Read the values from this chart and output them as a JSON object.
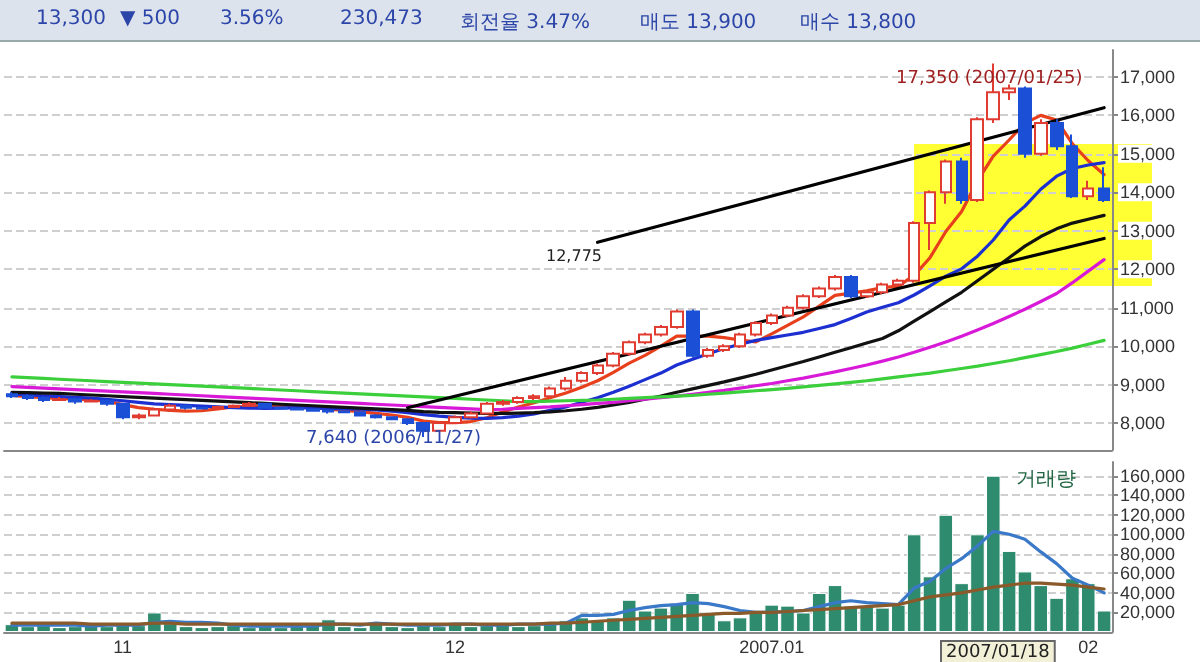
{
  "chart_data": [
    {
      "type": "candlestick",
      "categories": [
        null,
        null,
        null,
        null,
        null,
        null,
        null,
        null,
        null,
        null,
        null,
        null,
        null,
        null,
        null,
        null,
        null,
        null,
        null,
        null,
        null,
        null,
        null,
        null,
        null,
        null,
        null,
        null,
        null,
        null,
        null,
        null,
        null,
        null,
        null,
        null,
        null,
        null,
        null,
        null,
        null,
        null,
        null,
        null,
        null,
        null,
        null,
        null,
        null,
        null,
        null,
        null,
        null,
        null,
        null,
        null,
        null,
        null,
        null,
        null,
        null,
        null,
        null,
        null,
        null,
        null,
        null,
        null,
        null,
        null
      ],
      "ylim": [
        7300,
        17700
      ],
      "yticks": [
        {
          "value": 8000,
          "label": "8,000"
        },
        {
          "value": 9000,
          "label": "9,000"
        },
        {
          "value": 10000,
          "label": "10,000"
        },
        {
          "value": 11000,
          "label": "11,000"
        },
        {
          "value": 12000,
          "label": "12,000"
        },
        {
          "value": 13000,
          "label": "13,000"
        },
        {
          "value": 14000,
          "label": "14,000"
        },
        {
          "value": 15000,
          "label": "15,000"
        },
        {
          "value": 16000,
          "label": "16,000"
        },
        {
          "value": 17000,
          "label": "17,000"
        }
      ],
      "grid": "y",
      "tick_labels": "y",
      "annotations": [
        "13,300",
        "▼ 500",
        "3.56%",
        "230,473",
        "회전율 3.47%",
        "매도 13,900",
        "매수 13,800",
        "17,350 (2007/01/25)",
        "7,640 (2006/11/27)",
        "12,775"
      ],
      "series": [
        {
          "type": "candlestick",
          "ohlc": [
            [
              8750,
              8800,
              8650,
              8700
            ],
            [
              8700,
              8750,
              8600,
              8650
            ],
            [
              8650,
              8700,
              8550,
              8600
            ],
            [
              8600,
              8680,
              8580,
              8620
            ],
            [
              8620,
              8650,
              8500,
              8560
            ],
            [
              8560,
              8620,
              8540,
              8580
            ],
            [
              8580,
              8600,
              8450,
              8500
            ],
            [
              8500,
              8520,
              8100,
              8150
            ],
            [
              8150,
              8250,
              8100,
              8200
            ],
            [
              8200,
              8400,
              8180,
              8350
            ],
            [
              8350,
              8500,
              8300,
              8450
            ],
            [
              8450,
              8480,
              8350,
              8400
            ],
            [
              8400,
              8420,
              8350,
              8380
            ],
            [
              8380,
              8450,
              8360,
              8420
            ],
            [
              8420,
              8480,
              8400,
              8450
            ],
            [
              8450,
              8550,
              8430,
              8500
            ],
            [
              8500,
              8520,
              8380,
              8400
            ],
            [
              8400,
              8420,
              8350,
              8380
            ],
            [
              8380,
              8400,
              8330,
              8350
            ],
            [
              8350,
              8380,
              8300,
              8320
            ],
            [
              8320,
              8350,
              8250,
              8300
            ],
            [
              8300,
              8330,
              8260,
              8280
            ],
            [
              8280,
              8300,
              8180,
              8200
            ],
            [
              8200,
              8230,
              8120,
              8150
            ],
            [
              8150,
              8180,
              8080,
              8100
            ],
            [
              8100,
              8120,
              7950,
              8000
            ],
            [
              8000,
              8020,
              7640,
              7800
            ],
            [
              7800,
              8050,
              7780,
              8000
            ],
            [
              8000,
              8200,
              7980,
              8150
            ],
            [
              8150,
              8300,
              8120,
              8250
            ],
            [
              8250,
              8550,
              8230,
              8500
            ],
            [
              8500,
              8600,
              8450,
              8550
            ],
            [
              8550,
              8700,
              8500,
              8650
            ],
            [
              8650,
              8750,
              8600,
              8700
            ],
            [
              8700,
              8950,
              8680,
              8900
            ],
            [
              8900,
              9200,
              8850,
              9100
            ],
            [
              9100,
              9350,
              9050,
              9300
            ],
            [
              9300,
              9550,
              9250,
              9500
            ],
            [
              9500,
              9850,
              9450,
              9800
            ],
            [
              9800,
              10150,
              9750,
              10100
            ],
            [
              10100,
              10350,
              10050,
              10300
            ],
            [
              10300,
              10550,
              10250,
              10500
            ],
            [
              10500,
              10950,
              10450,
              10900
            ],
            [
              10900,
              10950,
              9700,
              9750
            ],
            [
              9750,
              9950,
              9700,
              9900
            ],
            [
              9900,
              10050,
              9850,
              10000
            ],
            [
              10000,
              10350,
              9950,
              10300
            ],
            [
              10300,
              10650,
              10250,
              10600
            ],
            [
              10600,
              10850,
              10550,
              10800
            ],
            [
              10800,
              11050,
              10750,
              11000
            ],
            [
              11000,
              11350,
              10950,
              11300
            ],
            [
              11300,
              11550,
              11250,
              11500
            ],
            [
              11500,
              11850,
              11450,
              11800
            ],
            [
              11800,
              11850,
              11250,
              11300
            ],
            [
              11300,
              11450,
              11250,
              11400
            ],
            [
              11400,
              11650,
              11350,
              11600
            ],
            [
              11600,
              11750,
              11550,
              11700
            ],
            [
              11700,
              13250,
              11650,
              13200
            ],
            [
              13200,
              14050,
              12500,
              14000
            ],
            [
              14000,
              14850,
              13700,
              14800
            ],
            [
              14800,
              14900,
              13700,
              13800
            ],
            [
              13800,
              15950,
              13750,
              15900
            ],
            [
              15900,
              17350,
              15800,
              16600
            ],
            [
              16600,
              16800,
              16400,
              16700
            ],
            [
              16700,
              16750,
              14900,
              15000
            ],
            [
              15000,
              15900,
              14950,
              15800
            ],
            [
              15800,
              15900,
              15100,
              15200
            ],
            [
              15200,
              15500,
              13850,
              13900
            ],
            [
              13900,
              14300,
              13800,
              14100
            ],
            [
              14100,
              14650,
              13750,
              13800
            ]
          ],
          "colors": [
            "#1a4fd6",
            "#1a4fd6",
            "#1a4fd6",
            "#e03c31",
            "#1a4fd6",
            "#e03c31",
            "#1a4fd6",
            "#1a4fd6",
            "#e03c31",
            "#e03c31",
            "#e03c31",
            "#1a4fd6",
            "#1a4fd6",
            "#e03c31",
            "#e03c31",
            "#e03c31",
            "#1a4fd6",
            "#1a4fd6",
            "#1a4fd6",
            "#1a4fd6",
            "#1a4fd6",
            "#1a4fd6",
            "#1a4fd6",
            "#1a4fd6",
            "#1a4fd6",
            "#1a4fd6",
            "#1a4fd6",
            "#e03c31",
            "#e03c31",
            "#e03c31",
            "#e03c31",
            "#e03c31",
            "#e03c31",
            "#e03c31",
            "#e03c31",
            "#e03c31",
            "#e03c31",
            "#e03c31",
            "#e03c31",
            "#e03c31",
            "#e03c31",
            "#e03c31",
            "#e03c31",
            "#1a4fd6",
            "#e03c31",
            "#e03c31",
            "#e03c31",
            "#e03c31",
            "#e03c31",
            "#e03c31",
            "#e03c31",
            "#e03c31",
            "#e03c31",
            "#1a4fd6",
            "#e03c31",
            "#e03c31",
            "#e03c31",
            "#e03c31",
            "#e03c31",
            "#e03c31",
            "#1a4fd6",
            "#e03c31",
            "#e03c31",
            "#e03c31",
            "#1a4fd6",
            "#e03c31",
            "#1a4fd6",
            "#1a4fd6",
            "#e03c31",
            "#1a4fd6"
          ]
        },
        {
          "type": "line",
          "color": "#e8401c",
          "values": [
            8720,
            8690,
            8660,
            8640,
            8620,
            8600,
            8570,
            8480,
            8400,
            8360,
            8330,
            8310,
            8320,
            8370,
            8420,
            8430,
            8430,
            8430,
            8420,
            8400,
            8360,
            8330,
            8300,
            8250,
            8210,
            8150,
            8050,
            8010,
            8010,
            8040,
            8140,
            8290,
            8420,
            8530,
            8660,
            8780,
            8930,
            9100,
            9320,
            9560,
            9760,
            10000,
            10260,
            10260,
            10260,
            10220,
            10160,
            10110,
            10320,
            10540,
            10760,
            11040,
            11320,
            11380,
            11440,
            11520,
            11560,
            11840,
            12300,
            12980,
            13500,
            14300,
            14940,
            15360,
            15800,
            16000,
            15880,
            15260,
            14820,
            14460
          ]
        },
        {
          "type": "line",
          "color": "#1c2fd0",
          "values": [
            8750,
            8730,
            8710,
            8690,
            8670,
            8650,
            8620,
            8580,
            8540,
            8500,
            8480,
            8460,
            8440,
            8420,
            8400,
            8390,
            8380,
            8390,
            8400,
            8390,
            8380,
            8370,
            8360,
            8340,
            8310,
            8270,
            8220,
            8180,
            8150,
            8130,
            8120,
            8140,
            8180,
            8240,
            8330,
            8420,
            8540,
            8660,
            8800,
            8960,
            9130,
            9300,
            9510,
            9660,
            9800,
            9940,
            10050,
            10150,
            10220,
            10290,
            10360,
            10460,
            10560,
            10720,
            10890,
            11010,
            11130,
            11330,
            11570,
            11820,
            12010,
            12340,
            12760,
            13280,
            13640,
            14080,
            14420,
            14620,
            14710,
            14770
          ]
        },
        {
          "type": "line",
          "color": "#111111",
          "values": [
            8800,
            8790,
            8780,
            8770,
            8750,
            8730,
            8710,
            8690,
            8670,
            8650,
            8630,
            8610,
            8590,
            8570,
            8550,
            8530,
            8510,
            8490,
            8470,
            8450,
            8430,
            8410,
            8390,
            8370,
            8350,
            8330,
            8300,
            8280,
            8270,
            8260,
            8250,
            8250,
            8260,
            8270,
            8290,
            8320,
            8360,
            8410,
            8470,
            8540,
            8620,
            8700,
            8800,
            8890,
            8980,
            9070,
            9170,
            9270,
            9380,
            9490,
            9600,
            9720,
            9840,
            9960,
            10080,
            10200,
            10400,
            10650,
            10900,
            11150,
            11400,
            11700,
            12000,
            12300,
            12600,
            12850,
            13050,
            13200,
            13300,
            13400
          ]
        },
        {
          "type": "line",
          "color": "#d81ad8",
          "values": [
            8950,
            8930,
            8910,
            8890,
            8870,
            8850,
            8830,
            8810,
            8790,
            8770,
            8750,
            8730,
            8710,
            8690,
            8670,
            8650,
            8630,
            8610,
            8590,
            8570,
            8550,
            8530,
            8510,
            8490,
            8470,
            8450,
            8430,
            8410,
            8390,
            8370,
            8350,
            8360,
            8380,
            8400,
            8420,
            8450,
            8480,
            8510,
            8540,
            8580,
            8620,
            8660,
            8700,
            8750,
            8800,
            8850,
            8910,
            8970,
            9030,
            9100,
            9170,
            9250,
            9330,
            9420,
            9510,
            9610,
            9720,
            9840,
            9970,
            10110,
            10260,
            10420,
            10590,
            10770,
            10960,
            11160,
            11370,
            11650,
            11950,
            12250
          ]
        },
        {
          "type": "line",
          "color": "#3ccf3c",
          "values": [
            9200,
            9180,
            9160,
            9140,
            9120,
            9100,
            9080,
            9060,
            9040,
            9020,
            9000,
            8980,
            8960,
            8940,
            8920,
            8900,
            8880,
            8860,
            8840,
            8820,
            8800,
            8780,
            8760,
            8740,
            8720,
            8700,
            8680,
            8660,
            8640,
            8620,
            8600,
            8580,
            8560,
            8560,
            8570,
            8580,
            8590,
            8600,
            8620,
            8640,
            8660,
            8680,
            8700,
            8720,
            8750,
            8780,
            8810,
            8840,
            8870,
            8900,
            8940,
            8980,
            9020,
            9060,
            9100,
            9150,
            9200,
            9250,
            9300,
            9360,
            9420,
            9480,
            9550,
            9620,
            9700,
            9780,
            9860,
            9950,
            10050,
            10150
          ]
        },
        {
          "type": "line",
          "color": "#000000",
          "values": [
            null,
            null,
            null,
            null,
            null,
            null,
            null,
            null,
            null,
            null,
            null,
            null,
            null,
            null,
            null,
            null,
            null,
            null,
            null,
            null,
            null,
            null,
            null,
            null,
            null,
            null,
            null,
            null,
            null,
            null,
            null,
            null,
            null,
            null,
            null,
            null,
            null,
            12700,
            null,
            null,
            null,
            null,
            null,
            null,
            null,
            null,
            null,
            null,
            null,
            null,
            null,
            null,
            null,
            null,
            null,
            null,
            null,
            null,
            null,
            null,
            null,
            null,
            null,
            null,
            null,
            null,
            null,
            null,
            null,
            16200
          ]
        },
        {
          "type": "line",
          "color": "#000000",
          "values": [
            null,
            null,
            null,
            null,
            null,
            null,
            null,
            null,
            null,
            null,
            null,
            null,
            null,
            null,
            null,
            null,
            null,
            null,
            null,
            null,
            null,
            null,
            null,
            null,
            null,
            8400,
            null,
            null,
            null,
            null,
            null,
            null,
            null,
            null,
            null,
            null,
            null,
            null,
            null,
            null,
            null,
            null,
            null,
            null,
            null,
            null,
            null,
            null,
            null,
            null,
            null,
            null,
            null,
            null,
            null,
            null,
            null,
            null,
            null,
            null,
            null,
            null,
            null,
            null,
            null,
            null,
            null,
            null,
            null,
            12800
          ]
        }
      ]
    },
    {
      "type": "bar",
      "categories": [
        null,
        null,
        null,
        null,
        null,
        null,
        null,
        "11",
        null,
        null,
        null,
        null,
        null,
        null,
        null,
        null,
        null,
        null,
        null,
        null,
        null,
        null,
        null,
        null,
        null,
        null,
        null,
        null,
        "12",
        null,
        null,
        null,
        null,
        null,
        null,
        null,
        null,
        null,
        null,
        null,
        null,
        null,
        null,
        null,
        null,
        null,
        null,
        null,
        "2007.01",
        null,
        null,
        null,
        null,
        null,
        null,
        null,
        null,
        null,
        null,
        null,
        null,
        null,
        null,
        null,
        null,
        null,
        null,
        null,
        "02",
        null
      ],
      "ylim": [
        0,
        174000
      ],
      "yticks": [
        {
          "value": 20000,
          "label": "20,000"
        },
        {
          "value": 40000,
          "label": "40,000"
        },
        {
          "value": 60000,
          "label": "60,000"
        },
        {
          "value": 80000,
          "label": "80,000"
        },
        {
          "value": 100000,
          "label": "100,000"
        },
        {
          "value": 120000,
          "label": "120,000"
        },
        {
          "value": 140000,
          "label": "140,000"
        },
        {
          "value": 160000,
          "label": "160,000"
        }
      ],
      "grid": "y",
      "annotations": [
        "거래량",
        "2007/01/18"
      ],
      "series": [
        {
          "type": "bar",
          "color": "#2e8b6e",
          "values": [
            8000,
            6000,
            7000,
            5000,
            6000,
            7000,
            6000,
            9000,
            7000,
            20000,
            9000,
            6000,
            5000,
            6000,
            7000,
            5000,
            6000,
            5000,
            6000,
            7000,
            13000,
            6000,
            5000,
            10000,
            6000,
            5000,
            7000,
            6000,
            10000,
            6000,
            7000,
            8000,
            6000,
            7000,
            9000,
            12000,
            15000,
            12000,
            15000,
            33000,
            22000,
            25000,
            30000,
            40000,
            20000,
            12000,
            15000,
            20000,
            28000,
            27000,
            20000,
            40000,
            48000,
            27000,
            27000,
            25000,
            28000,
            100000,
            57000,
            120000,
            50000,
            100000,
            160000,
            83000,
            62000,
            48000,
            35000,
            55000,
            50000,
            22000
          ]
        },
        {
          "type": "line",
          "color": "#3a78c8",
          "values": [
            7000,
            7000,
            7000,
            7000,
            7000,
            6000,
            7000,
            7000,
            7000,
            10000,
            11000,
            10000,
            10000,
            9000,
            7000,
            6000,
            6000,
            6000,
            6000,
            6000,
            8000,
            8000,
            7000,
            9000,
            8000,
            7000,
            7000,
            7000,
            8000,
            8000,
            7000,
            7000,
            8000,
            8000,
            8000,
            9000,
            17000,
            17000,
            18000,
            22000,
            25000,
            27000,
            28000,
            30000,
            29000,
            26000,
            22000,
            20000,
            20000,
            21000,
            22000,
            26000,
            30000,
            32000,
            30000,
            29000,
            28000,
            45000,
            52000,
            65000,
            75000,
            88000,
            103000,
            100000,
            95000,
            82000,
            70000,
            55000,
            48000,
            40000
          ]
        },
        {
          "type": "line",
          "color": "#8a5a2a",
          "values": [
            9000,
            9000,
            9000,
            9000,
            9000,
            8000,
            8000,
            8000,
            8000,
            9000,
            9000,
            8000,
            8000,
            8000,
            8000,
            8000,
            8000,
            8000,
            8000,
            8000,
            8000,
            8000,
            8000,
            8000,
            8000,
            8000,
            8000,
            8000,
            8000,
            8000,
            8000,
            8000,
            8000,
            8000,
            9000,
            9000,
            10000,
            11000,
            12000,
            13000,
            14000,
            15000,
            16000,
            17000,
            18000,
            19000,
            19000,
            20000,
            20000,
            21000,
            22000,
            23000,
            24000,
            25000,
            26000,
            27000,
            28000,
            32000,
            36000,
            38000,
            40000,
            43000,
            46000,
            48000,
            50000,
            50000,
            49000,
            48000,
            46000,
            44000
          ]
        }
      ]
    }
  ]
}
